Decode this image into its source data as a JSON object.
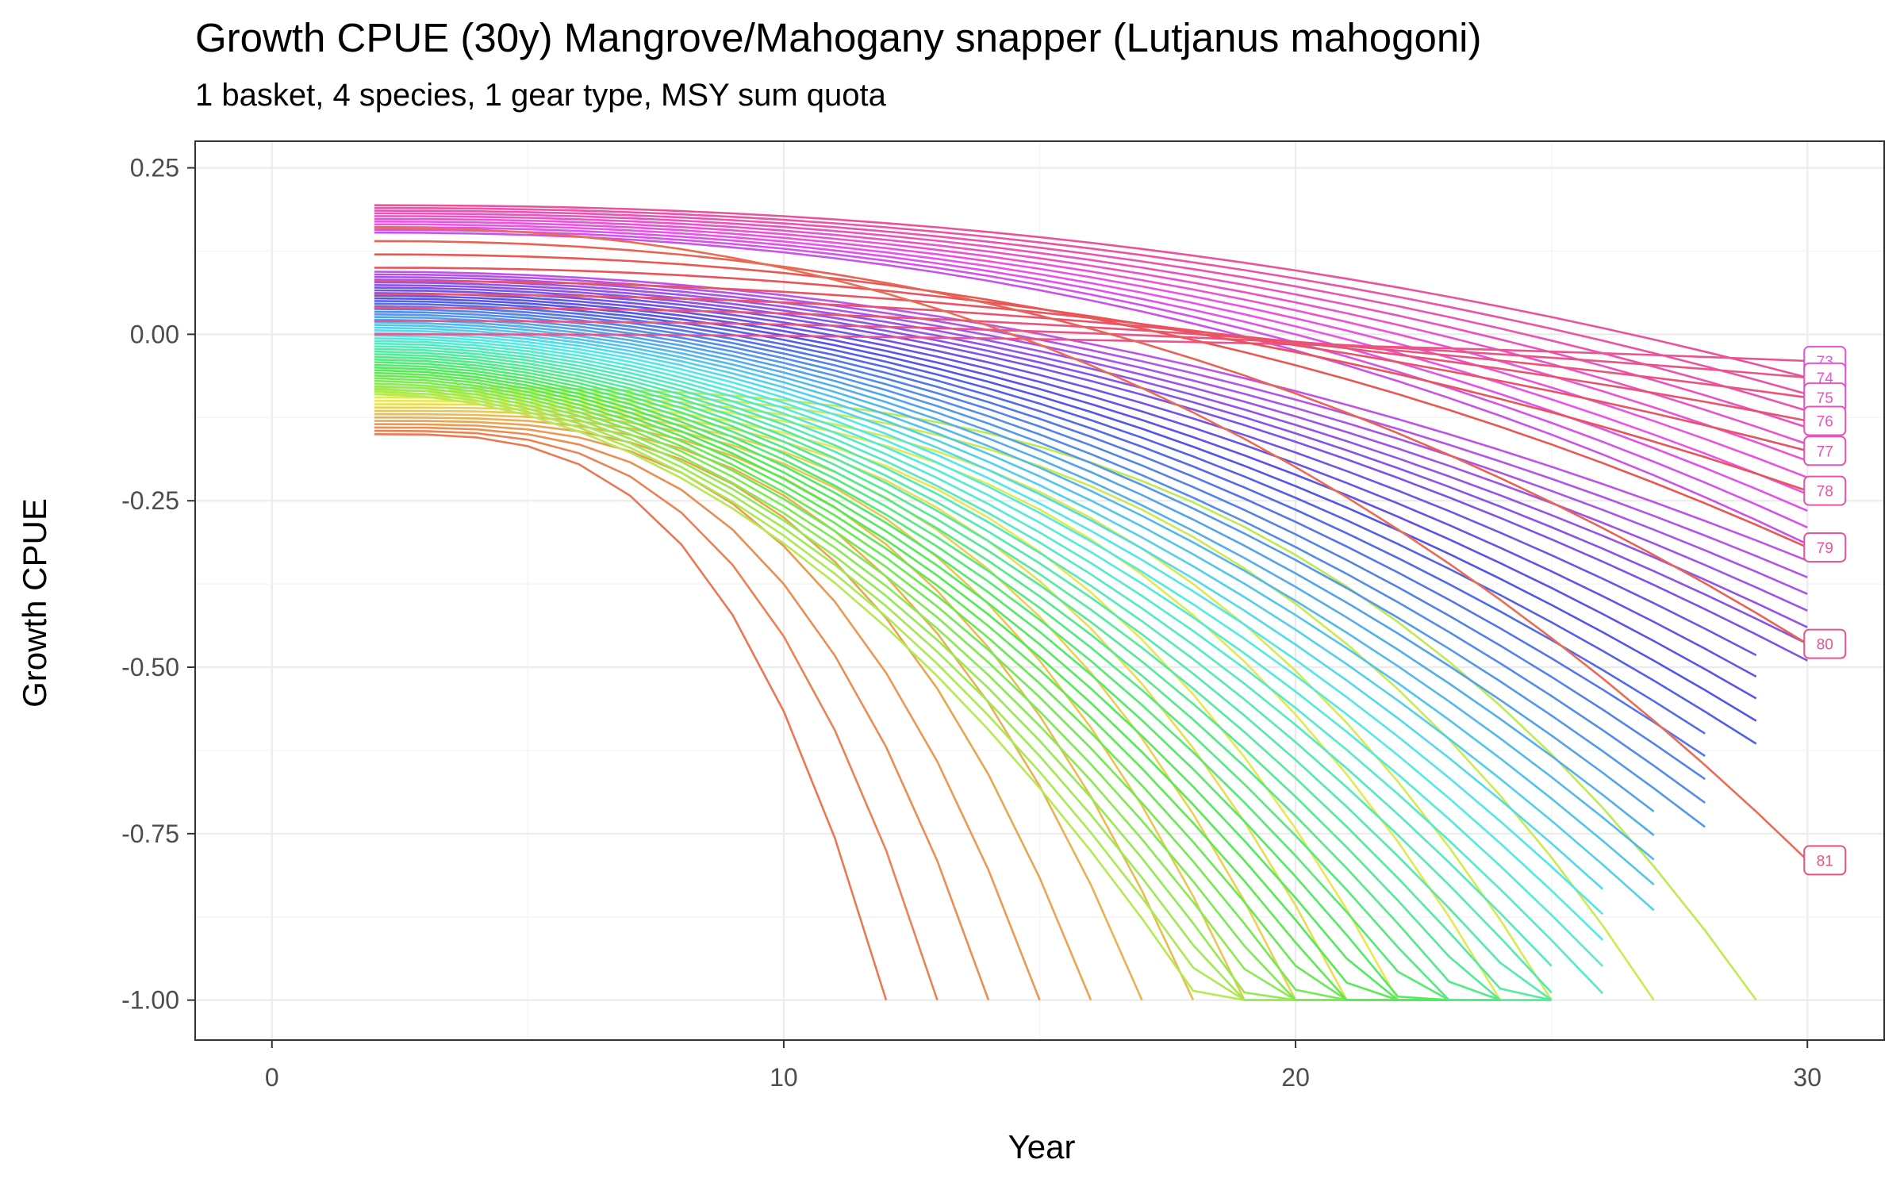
{
  "chart_data": {
    "type": "line",
    "title": "Growth CPUE (30y) Mangrove/Mahogany snapper (Lutjanus mahogoni)",
    "subtitle": "1 basket, 4 species, 1 gear type, MSY sum quota",
    "xlabel": "Year",
    "ylabel": "Growth CPUE",
    "xlim": [
      -1.5,
      31.5
    ],
    "ylim": [
      -1.06,
      0.29
    ],
    "x_ticks": [
      0,
      10,
      20,
      30
    ],
    "y_ticks": [
      0.25,
      0.0,
      -0.25,
      -0.5,
      -0.75,
      -1.0
    ],
    "x_tick_labels": [
      "0",
      "10",
      "20",
      "30"
    ],
    "y_tick_labels": [
      "0.25",
      "0.00",
      "-0.25",
      "-0.50",
      "-0.75",
      "-1.00"
    ],
    "grid": true,
    "legend": "none",
    "series_count": 82,
    "x_start": 2,
    "x_end": 30,
    "start_values_range": [
      0.23,
      -0.15
    ],
    "end_labels": [
      {
        "label": "73",
        "value": -0.04
      },
      {
        "label": "74",
        "value": -0.065
      },
      {
        "label": "75",
        "value": -0.095
      },
      {
        "label": "76",
        "value": -0.13
      },
      {
        "label": "77",
        "value": -0.175
      },
      {
        "label": "78",
        "value": -0.235
      },
      {
        "label": "79",
        "value": -0.32
      },
      {
        "label": "80",
        "value": -0.465
      },
      {
        "label": "81",
        "value": -0.79
      }
    ],
    "collapse_years_at_minus_one": [
      12,
      13,
      14,
      15,
      16,
      17,
      18,
      19,
      20,
      21,
      22,
      24,
      25,
      27,
      29
    ]
  }
}
